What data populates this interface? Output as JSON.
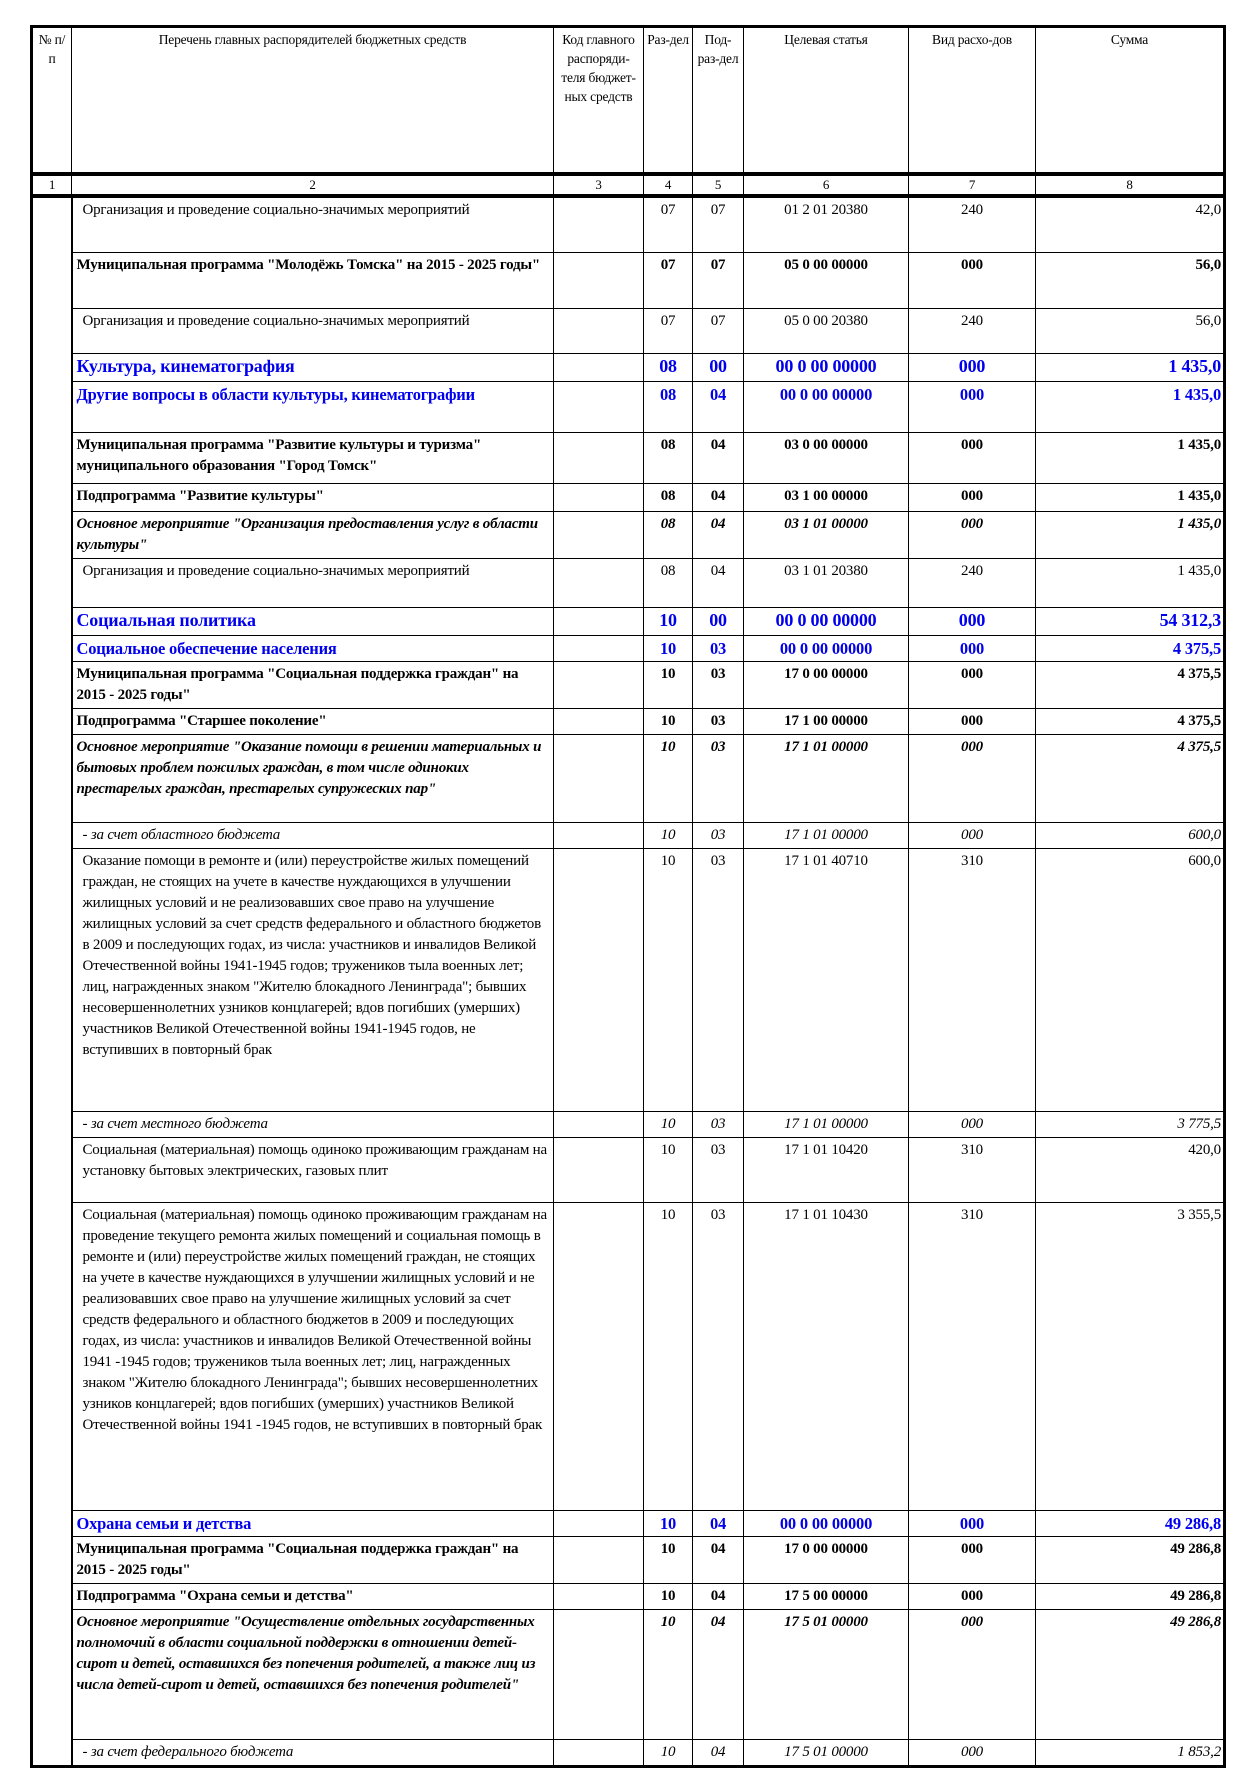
{
  "header": {
    "col1": "№ п/п",
    "col2": "Перечень главных распорядителей бюджетных средств",
    "col3": "Код главного распоряди-теля бюджет-ных средств",
    "col4": "Раз-дел",
    "col5": "Под-раз-дел",
    "col6": "Целевая статья",
    "col7": "Вид расхо-дов",
    "col8": "Сумма"
  },
  "column_numbers": [
    "1",
    "2",
    "3",
    "4",
    "5",
    "6",
    "7",
    "8"
  ],
  "colors": {
    "section": "#0000ee",
    "text": "#000000"
  },
  "rows": [
    {
      "style": "norm",
      "name": "Организация и проведение социально-значимых мероприятий",
      "code": "",
      "razdel": "07",
      "podrazdel": "07",
      "article": "01 2 01 20380",
      "vid": "240",
      "sum": "42,0"
    },
    {
      "style": "bold",
      "name": "Муниципальная программа \"Молодёжь Томска\" на 2015 - 2025 годы\"",
      "code": "",
      "razdel": "07",
      "podrazdel": "07",
      "article": "05 0 00 00000",
      "vid": "000",
      "sum": "56,0"
    },
    {
      "style": "norm",
      "name": "Организация и проведение социально-значимых мероприятий",
      "code": "",
      "razdel": "07",
      "podrazdel": "07",
      "article": "05 0 00 20380",
      "vid": "240",
      "sum": "56,0"
    },
    {
      "style": "blue",
      "name": "Культура, кинематография",
      "code": "",
      "razdel": "08",
      "podrazdel": "00",
      "article": "00 0 00 00000",
      "vid": "000",
      "sum": "1 435,0"
    },
    {
      "style": "blue2",
      "name": "Другие вопросы в области культуры, кинематографии",
      "code": "",
      "razdel": "08",
      "podrazdel": "04",
      "article": "00 0 00 00000",
      "vid": "000",
      "sum": "1 435,0"
    },
    {
      "style": "bold",
      "name": "Муниципальная программа \"Развитие культуры и туризма\" муниципального образования \"Город Томск\"",
      "code": "",
      "razdel": "08",
      "podrazdel": "04",
      "article": "03 0 00 00000",
      "vid": "000",
      "sum": "1 435,0"
    },
    {
      "style": "bold",
      "name": "Подпрограмма \"Развитие культуры\"",
      "code": "",
      "razdel": "08",
      "podrazdel": "04",
      "article": "03 1 00 00000",
      "vid": "000",
      "sum": "1 435,0"
    },
    {
      "style": "bi",
      "name": "Основное мероприятие \"Организация предоставления услуг в области культуры\"",
      "code": "",
      "razdel": "08",
      "podrazdel": "04",
      "article": "03 1 01 00000",
      "vid": "000",
      "sum": "1 435,0"
    },
    {
      "style": "norm",
      "name": "Организация и проведение социально-значимых мероприятий",
      "code": "",
      "razdel": "08",
      "podrazdel": "04",
      "article": "03 1 01 20380",
      "vid": "240",
      "sum": "1 435,0"
    },
    {
      "style": "blue",
      "name": "Социальная политика",
      "code": "",
      "razdel": "10",
      "podrazdel": "00",
      "article": "00 0 00 00000",
      "vid": "000",
      "sum": "54 312,3"
    },
    {
      "style": "blue2",
      "name": "Социальное обеспечение населения",
      "code": "",
      "razdel": "10",
      "podrazdel": "03",
      "article": "00 0 00 00000",
      "vid": "000",
      "sum": "4 375,5"
    },
    {
      "style": "bold",
      "name": "Муниципальная программа \"Социальная поддержка граждан\" на 2015 - 2025 годы\"",
      "code": "",
      "razdel": "10",
      "podrazdel": "03",
      "article": "17 0 00 00000",
      "vid": "000",
      "sum": "4 375,5"
    },
    {
      "style": "bold",
      "name": "Подпрограмма \"Старшее поколение\"",
      "code": "",
      "razdel": "10",
      "podrazdel": "03",
      "article": "17 1 00 00000",
      "vid": "000",
      "sum": "4 375,5"
    },
    {
      "style": "bi",
      "name": "Основное мероприятие \"Оказание помощи в решении материальных и бытовых проблем пожилых граждан, в том числе одиноких престарелых граждан, престарелых супружеских пар\"",
      "code": "",
      "razdel": "10",
      "podrazdel": "03",
      "article": "17 1 01 00000",
      "vid": "000",
      "sum": "4 375,5"
    },
    {
      "style": "it",
      "name": "- за счет областного бюджета",
      "code": "",
      "razdel": "10",
      "podrazdel": "03",
      "article": "17 1 01 00000",
      "vid": "000",
      "sum": "600,0"
    },
    {
      "style": "norm",
      "name": "Оказание помощи в ремонте и (или) переустройстве жилых помещений граждан, не стоящих на учете в качестве нуждающихся в улучшении жилищных условий и не реализовавших свое право на улучшение жилищных условий за счет средств федерального и областного бюджетов в 2009 и последующих годах, из числа: участников и инвалидов Великой Отечественной войны 1941-1945 годов; тружеников тыла военных лет; лиц, награжденных знаком \"Жителю блокадного Ленинграда\"; бывших несовершеннолетних узников концлагерей; вдов погибших (умерших) участников Великой Отечественной войны 1941-1945 годов, не вступивших в повторный брак",
      "code": "",
      "razdel": "10",
      "podrazdel": "03",
      "article": "17 1 01 40710",
      "vid": "310",
      "sum": "600,0"
    },
    {
      "style": "it",
      "name": "- за счет местного бюджета",
      "code": "",
      "razdel": "10",
      "podrazdel": "03",
      "article": "17 1 01 00000",
      "vid": "000",
      "sum": "3 775,5"
    },
    {
      "style": "norm",
      "name": "Социальная (материальная) помощь одиноко проживающим гражданам на установку бытовых электрических, газовых плит",
      "code": "",
      "razdel": "10",
      "podrazdel": "03",
      "article": "17 1 01 10420",
      "vid": "310",
      "sum": "420,0"
    },
    {
      "style": "norm",
      "name": "Социальная (материальная) помощь одиноко проживающим гражданам на проведение текущего ремонта жилых помещений и социальная помощь в ремонте и (или) переустройстве жилых помещений граждан, не стоящих на учете в качестве нуждающихся в улучшении жилищных условий и не реализовавших свое право на улучшение жилищных условий за счет средств федерального и областного бюджетов в 2009 и последующих годах, из числа: участников и инвалидов Великой Отечественной войны 1941 -1945 годов; тружеников тыла военных лет; лиц, награжденных знаком \"Жителю блокадного Ленинграда\"; бывших несовершеннолетних узников концлагерей; вдов погибших (умерших) участников Великой Отечественной войны 1941 -1945 годов, не вступивших в повторный брак",
      "code": "",
      "razdel": "10",
      "podrazdel": "03",
      "article": "17 1 01 10430",
      "vid": "310",
      "sum": "3 355,5"
    },
    {
      "style": "blue2",
      "name": "Охрана семьи и детства",
      "code": "",
      "razdel": "10",
      "podrazdel": "04",
      "article": "00 0 00 00000",
      "vid": "000",
      "sum": "49 286,8"
    },
    {
      "style": "bold",
      "name": "Муниципальная программа \"Социальная поддержка граждан\" на 2015 - 2025 годы\"",
      "code": "",
      "razdel": "10",
      "podrazdel": "04",
      "article": "17 0 00 00000",
      "vid": "000",
      "sum": "49 286,8"
    },
    {
      "style": "bold",
      "name": "Подпрограмма \"Охрана семьи и детства\"",
      "code": "",
      "razdel": "10",
      "podrazdel": "04",
      "article": "17 5 00 00000",
      "vid": "000",
      "sum": "49 286,8"
    },
    {
      "style": "bi",
      "name": "Основное мероприятие \"Осуществление отдельных государственных полномочий в области социальной поддержки в отношении детей-сирот и детей, оставшихся без попечения родителей, а также лиц из числа детей-сирот и детей, оставшихся без попечения родителей\"",
      "code": "",
      "razdel": "10",
      "podrazdel": "04",
      "article": "17 5 01 00000",
      "vid": "000",
      "sum": "49 286,8"
    },
    {
      "style": "it",
      "name": "- за счет федерального бюджета",
      "code": "",
      "razdel": "10",
      "podrazdel": "04",
      "article": "17 5 01 00000",
      "vid": "000",
      "sum": "1 853,2"
    }
  ]
}
